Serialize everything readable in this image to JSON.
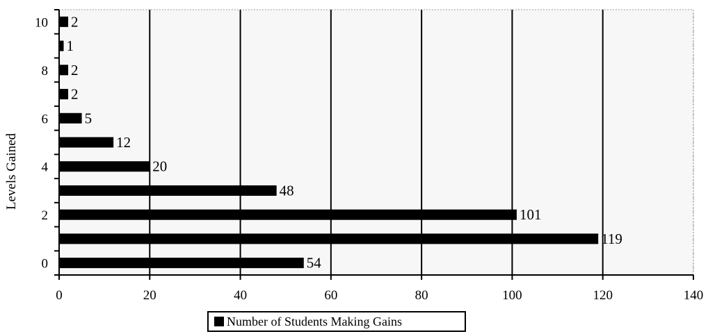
{
  "chart_data": {
    "type": "bar",
    "orientation": "horizontal",
    "categories": [
      "0",
      "1",
      "2",
      "3",
      "4",
      "5",
      "6",
      "7",
      "8",
      "9",
      "10"
    ],
    "y_tick_labels": [
      "0",
      "2",
      "4",
      "6",
      "8",
      "10"
    ],
    "series": [
      {
        "name": "Number of Students Making Gains",
        "values": [
          54,
          119,
          101,
          48,
          20,
          12,
          5,
          2,
          2,
          1,
          2
        ]
      }
    ],
    "xlim": [
      0,
      140
    ],
    "x_ticks": [
      0,
      20,
      40,
      60,
      80,
      100,
      120,
      140
    ],
    "ylabel": "Levels Gained",
    "xlabel": "",
    "title": "",
    "grid": "vertical",
    "legend_position": "bottom",
    "bar_color": "#000000"
  },
  "legend": {
    "label": "Number of Students Making Gains"
  }
}
